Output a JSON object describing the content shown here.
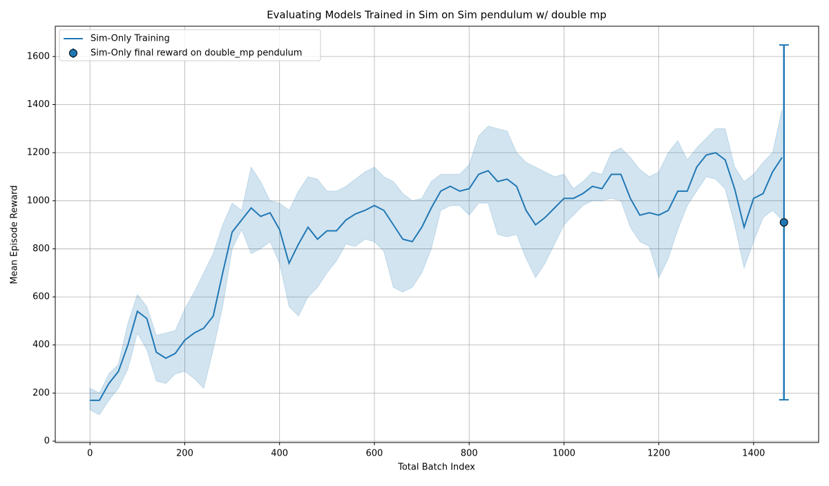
{
  "chart_data": {
    "type": "line",
    "title": "Evaluating Models Trained in Sim on Sim pendulum w/ double mp",
    "x_label": "Total Batch Index",
    "y_label": "Mean Episode Reward",
    "xlim": [
      -73.2,
      1537.2
    ],
    "ylim": [
      -5.7,
      1726
    ],
    "xticks": [
      0,
      200,
      400,
      600,
      800,
      1000,
      1200,
      1400
    ],
    "yticks": [
      0,
      200,
      400,
      600,
      800,
      1000,
      1200,
      1400,
      1600
    ],
    "grid": true,
    "legend": "upper left",
    "series": [
      {
        "name": "Sim-Only Training",
        "color": "#1f77b4",
        "x": [
          0,
          20,
          40,
          60,
          80,
          100,
          120,
          140,
          160,
          180,
          200,
          220,
          240,
          260,
          280,
          300,
          320,
          340,
          360,
          380,
          400,
          420,
          440,
          460,
          480,
          500,
          520,
          540,
          560,
          580,
          600,
          620,
          640,
          660,
          680,
          700,
          720,
          740,
          760,
          780,
          800,
          820,
          840,
          860,
          880,
          900,
          920,
          940,
          960,
          980,
          1000,
          1020,
          1040,
          1060,
          1080,
          1100,
          1120,
          1140,
          1160,
          1180,
          1200,
          1220,
          1240,
          1260,
          1280,
          1300,
          1320,
          1340,
          1360,
          1380,
          1400,
          1420,
          1440,
          1460
        ],
        "values": [
          170,
          170,
          240,
          290,
          400,
          540,
          510,
          370,
          345,
          365,
          420,
          450,
          470,
          520,
          700,
          870,
          920,
          970,
          935,
          950,
          880,
          740,
          820,
          890,
          840,
          875,
          875,
          920,
          945,
          960,
          980,
          960,
          900,
          840,
          830,
          890,
          970,
          1040,
          1060,
          1040,
          1050,
          1110,
          1125,
          1080,
          1090,
          1060,
          960,
          900,
          930,
          970,
          1010,
          1010,
          1030,
          1060,
          1050,
          1110,
          1110,
          1010,
          940,
          950,
          940,
          960,
          1040,
          1040,
          1140,
          1190,
          1200,
          1170,
          1050,
          890,
          1010,
          1030,
          1120,
          1180
        ],
        "lower": [
          130,
          110,
          170,
          220,
          300,
          450,
          380,
          250,
          240,
          280,
          290,
          260,
          220,
          380,
          560,
          800,
          880,
          780,
          800,
          830,
          740,
          560,
          520,
          600,
          640,
          700,
          750,
          820,
          810,
          840,
          830,
          790,
          640,
          620,
          640,
          700,
          800,
          960,
          980,
          980,
          940,
          990,
          990,
          860,
          850,
          860,
          760,
          680,
          740,
          820,
          900,
          940,
          980,
          1000,
          1000,
          1010,
          1000,
          890,
          830,
          810,
          680,
          760,
          880,
          980,
          1040,
          1100,
          1090,
          1050,
          900,
          720,
          830,
          930,
          960,
          920
        ],
        "upper": [
          220,
          200,
          280,
          320,
          490,
          610,
          560,
          440,
          450,
          460,
          550,
          620,
          700,
          780,
          900,
          990,
          960,
          1140,
          1080,
          1000,
          990,
          960,
          1040,
          1100,
          1090,
          1040,
          1040,
          1060,
          1090,
          1120,
          1140,
          1100,
          1080,
          1030,
          1000,
          1010,
          1080,
          1110,
          1110,
          1110,
          1150,
          1270,
          1310,
          1300,
          1290,
          1200,
          1160,
          1140,
          1120,
          1100,
          1110,
          1050,
          1080,
          1120,
          1110,
          1200,
          1220,
          1180,
          1130,
          1100,
          1120,
          1200,
          1250,
          1170,
          1220,
          1260,
          1300,
          1300,
          1140,
          1080,
          1110,
          1160,
          1200,
          1380
        ]
      },
      {
        "name": "Sim-Only final reward on double_mp pendulum",
        "color": "#1f77b4",
        "x": [
          1464
        ],
        "values": [
          910
        ],
        "errors": [
          738
        ]
      }
    ]
  }
}
